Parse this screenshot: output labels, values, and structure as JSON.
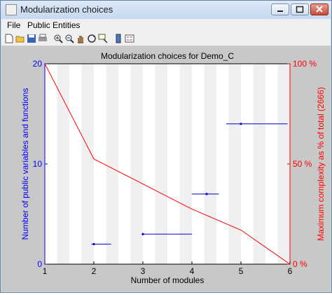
{
  "window": {
    "title": "Modularization choices"
  },
  "menu": {
    "items": [
      "File",
      "Public Entities"
    ]
  },
  "toolbar": {
    "icons": [
      "new-icon",
      "open-icon",
      "save-icon",
      "print-icon",
      "zoom-in-icon",
      "zoom-out-icon",
      "pan-icon",
      "rotate-icon",
      "data-cursor-icon",
      "colorbar-icon",
      "legend-icon"
    ]
  },
  "chart_data": {
    "type": "line",
    "title": "Modularization choices for Demo_C",
    "xlabel": "Number of modules",
    "ylabel": "Number of public variables and functions",
    "ylabel_right": "Maximum complexity as % of total (2666)",
    "xlim": [
      1,
      6
    ],
    "ylim": [
      0,
      20
    ],
    "ylim_right": [
      0,
      100
    ],
    "xticks": [
      "1",
      "2",
      "3",
      "4",
      "5",
      "6"
    ],
    "yticks": [
      "0",
      "10",
      "20"
    ],
    "yticks_right": [
      "0 %",
      "50 %",
      "100 %"
    ],
    "complexity_line": {
      "color": "#ff0000",
      "x": [
        1,
        2,
        3,
        4,
        5,
        6
      ],
      "y": [
        100,
        52.5,
        40,
        27.5,
        17,
        0
      ]
    },
    "public_entities": {
      "color": "#0000cc",
      "points": [
        {
          "x": 2,
          "y": 2,
          "xmin": 1.95,
          "xmax": 2.35
        },
        {
          "x": 3,
          "y": 3,
          "xmin": 3.0,
          "xmax": 4.0
        },
        {
          "x": 4.3,
          "y": 7,
          "xmin": 4.0,
          "xmax": 4.55
        },
        {
          "x": 5,
          "y": 14,
          "xmin": 4.7,
          "xmax": 5.95
        }
      ]
    },
    "grid": false
  }
}
